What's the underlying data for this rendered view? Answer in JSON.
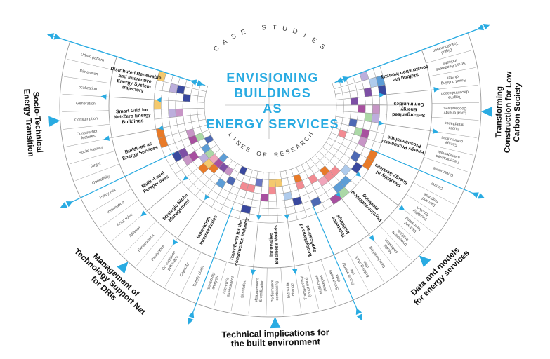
{
  "title": {
    "lines": [
      "ENVISIONING",
      "BUILDINGS",
      "AS",
      "ENERGY SERVICES"
    ]
  },
  "arc_labels": {
    "top": "CASE STUDIES",
    "bottom": "LINES OF RESEARCH"
  },
  "colors": {
    "accent": "#29ABE2",
    "grid": "#9a9a9a",
    "sector_text": "#1c1c1c",
    "keyword_text": "#4a4a4a",
    "arc_text": "#3c3c3c",
    "palette": {
      "orange": "#E87A28",
      "gold": "#F4C96E",
      "salmon": "#F28B92",
      "pink": "#F0A6BC",
      "magenta": "#A7509F",
      "purple": "#7D4FA5",
      "plum": "#C795C6",
      "lavender": "#BCAEDC",
      "indigo": "#39489E",
      "blue": "#4D69B4",
      "sky": "#5D9DD6",
      "lightblue": "#AFCBEC",
      "green": "#ABD8A6",
      "slate": "#6A77C2"
    }
  },
  "groups": [
    {
      "lines": [
        "Socio-Technical",
        "Energy Transition"
      ]
    },
    {
      "lines": [
        "Management of",
        "Technology Support Net",
        "for DRIs"
      ]
    },
    {
      "lines": [
        "Technical implications for",
        "the built environment"
      ]
    },
    {
      "lines": [
        "Data and models",
        "for energy services"
      ]
    },
    {
      "lines": [
        "Transforming",
        "Construction for Low",
        "Carbon Society"
      ]
    }
  ],
  "sectors": [
    {
      "label_lines": [
        "Distributed Renewable",
        "and Interactive",
        "Energy System",
        "trajectory"
      ],
      "keywords": [
        "Urban pattern",
        "Dimension",
        "Localization"
      ]
    },
    {
      "label_lines": [
        "Smart Grid for",
        "Net-Zero Energy",
        "Buildings"
      ],
      "keywords": [
        "Generation",
        "Consumption",
        "Construction|features"
      ]
    },
    {
      "label_lines": [
        "Buildings as",
        "Energy Services"
      ],
      "keywords": [
        "Social barriers",
        "Target",
        "Operability"
      ]
    },
    {
      "label_lines": [
        "Multi -Level",
        "Perspectives"
      ],
      "keywords": [
        "Policy mix",
        "Information",
        "Actor roles"
      ]
    },
    {
      "label_lines": [
        "Strategic Niche",
        "Management"
      ],
      "keywords": [
        "Alliance",
        "Expectations",
        "Resistance"
      ]
    },
    {
      "label_lines": [
        "Innovation",
        "Intermediaries"
      ],
      "keywords": [
        "Co-evolution|pathways",
        "Capacity",
        "Supply chain"
      ]
    },
    {
      "label_lines": [
        "Transitions for the",
        "construction industry"
      ],
      "keywords": [
        "Sensitivity|analysis",
        "Life-cycle|assessment",
        "Simulation"
      ]
    },
    {
      "label_lines": [
        "Innovative",
        "Business Models"
      ],
      "keywords": [
        "Measurement|& verification",
        "Performance|contracting",
        "Industrial|change"
      ]
    },
    {
      "label_lines": [
        "Ecosystems of",
        "applications"
      ],
      "keywords": [
        "Transparency|(input data)",
        "Multi-mode|strategies",
        "Smart meter|data"
      ]
    },
    {
      "label_lines": [
        "Reference",
        "Buildings"
      ],
      "keywords": [
        "Actual energy|use",
        "Building stock|data",
        "Benchmarking"
      ]
    },
    {
      "label_lines": [
        "Physics-statistical",
        "modeling"
      ],
      "keywords": [
        "Model|calibration",
        "Uncertainty|analysis",
        "Demand|forecasting"
      ]
    },
    {
      "label_lines": [
        "Flexibility of",
        "Energy Services"
      ],
      "keywords": [
        "Flexibility|function",
        "Demand|response",
        "Control"
      ]
    },
    {
      "label_lines": [
        "Energy Prosumers/",
        "Prosumerships"
      ],
      "keywords": [
        "Governance",
        "Decentralised|management",
        "Energy|communities"
      ]
    },
    {
      "label_lines": [
        "Self-organised",
        "Energy",
        "Communities"
      ],
      "keywords": [
        "Public|acceptance",
        "Local energy|Cooperatives",
        "Regime|decentralisation"
      ]
    },
    {
      "label_lines": [
        "Shifting the",
        "construction industry"
      ],
      "keywords": [
        "Smart building|cluster",
        "Smart Readiness|Indicator",
        "Digital|Transformation"
      ]
    }
  ],
  "cells": [
    [
      1,
      0,
      "gold"
    ],
    [
      2,
      2,
      "lavender"
    ],
    [
      2,
      3,
      "indigo"
    ],
    [
      3,
      4,
      "indigo"
    ],
    [
      4,
      0,
      "gold"
    ],
    [
      5,
      2,
      "lavender"
    ],
    [
      5,
      3,
      "plum"
    ],
    [
      7,
      0,
      "orange"
    ],
    [
      8,
      0,
      "orange"
    ],
    [
      8,
      4,
      "plum"
    ],
    [
      9,
      4,
      "magenta"
    ],
    [
      9,
      5,
      "green"
    ],
    [
      10,
      1,
      "indigo"
    ],
    [
      10,
      2,
      "purple"
    ],
    [
      10,
      6,
      "blue"
    ],
    [
      11,
      2,
      "plum"
    ],
    [
      11,
      3,
      "magenta"
    ],
    [
      11,
      5,
      "sky"
    ],
    [
      12,
      4,
      "lavender"
    ],
    [
      12,
      5,
      "green"
    ],
    [
      13,
      3,
      "orange"
    ],
    [
      13,
      4,
      "gold"
    ],
    [
      13,
      5,
      "pink"
    ],
    [
      14,
      4,
      "orange"
    ],
    [
      14,
      5,
      "magenta"
    ],
    [
      14,
      6,
      "sky"
    ],
    [
      15,
      5,
      "purple"
    ],
    [
      16,
      3,
      "sky"
    ],
    [
      16,
      5,
      "plum"
    ],
    [
      17,
      4,
      "blue"
    ],
    [
      18,
      6,
      "indigo"
    ],
    [
      19,
      4,
      "salmon"
    ],
    [
      20,
      1,
      "indigo"
    ],
    [
      20,
      4,
      "salmon"
    ],
    [
      21,
      5,
      "slate"
    ],
    [
      22,
      3,
      "magenta"
    ],
    [
      23,
      4,
      "salmon"
    ],
    [
      23,
      5,
      "gold"
    ],
    [
      24,
      5,
      "gold"
    ],
    [
      25,
      3,
      "lightblue"
    ],
    [
      26,
      2,
      "indigo"
    ],
    [
      27,
      4,
      "salmon"
    ],
    [
      27,
      5,
      "orange"
    ],
    [
      28,
      1,
      "blue"
    ],
    [
      29,
      4,
      "salmon"
    ],
    [
      30,
      0,
      "magenta"
    ],
    [
      30,
      3,
      "pink"
    ],
    [
      31,
      0,
      "green"
    ],
    [
      31,
      1,
      "sky"
    ],
    [
      32,
      1,
      "sky"
    ],
    [
      31,
      3,
      "salmon"
    ],
    [
      32,
      3,
      "salmon"
    ],
    [
      31,
      4,
      "orange"
    ],
    [
      33,
      2,
      "lightblue"
    ],
    [
      34,
      1,
      "indigo"
    ],
    [
      35,
      0,
      "orange"
    ],
    [
      35,
      2,
      "blue"
    ],
    [
      36,
      0,
      "orange"
    ],
    [
      37,
      2,
      "plum"
    ],
    [
      37,
      5,
      "salmon"
    ],
    [
      38,
      2,
      "magenta"
    ],
    [
      38,
      3,
      "green"
    ],
    [
      39,
      4,
      "blue"
    ],
    [
      40,
      1,
      "lavender"
    ],
    [
      40,
      2,
      "green"
    ],
    [
      41,
      1,
      "plum"
    ],
    [
      41,
      3,
      "magenta"
    ],
    [
      42,
      4,
      "purple"
    ],
    [
      43,
      0,
      "indigo"
    ],
    [
      43,
      2,
      "purple"
    ],
    [
      44,
      0,
      "sky"
    ],
    [
      44,
      1,
      "lightblue"
    ],
    [
      45,
      2,
      "lavender"
    ]
  ]
}
